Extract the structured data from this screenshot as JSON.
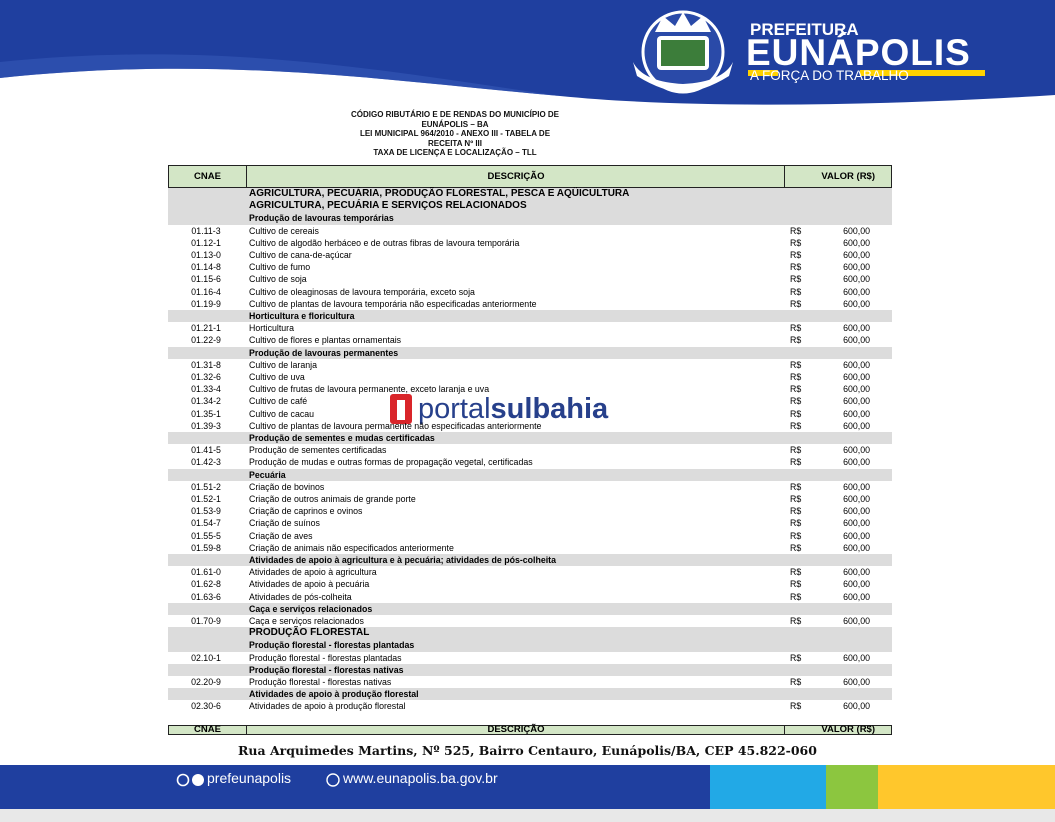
{
  "header": {
    "brand_top": "PREFEITURA",
    "brand_name": "EUNÁPOLIS",
    "brand_slogan": "A FORÇA DO TRABALHO"
  },
  "document": {
    "title_lines": [
      "CÓDIGO RIBUTÁRIO E DE RENDAS DO MUNICÍPIO DE",
      "EUNÁPOLIS – BA",
      "LEI MUNICIPAL 964/2010 - ANEXO III - TABELA DE",
      "RECEITA Nº III",
      "TAXA DE LICENÇA E LOCALIZAÇÃO – TLL"
    ]
  },
  "table": {
    "header": [
      "CNAE",
      "DESCRIÇÃO",
      "VALOR (R$)"
    ],
    "rows": [
      {
        "section": "AGRICULTURA, PECUÁRIA, PRODUÇÃO FLORESTAL, PESCA E AQÜICULTURA"
      },
      {
        "section": "AGRICULTURA, PECUÁRIA E SERVIÇOS RELACIONADOS"
      },
      {
        "section": "Produção de lavouras temporárias"
      },
      {
        "code": "01.11-3",
        "description": "Cultivo de cereais",
        "currency": "R$",
        "value": "600,00"
      },
      {
        "code": "01.12-1",
        "description": "Cultivo de algodão herbáceo e de outras fibras de lavoura temporária",
        "currency": "R$",
        "value": "600,00"
      },
      {
        "code": "01.13-0",
        "description": "Cultivo de cana-de-açúcar",
        "currency": "R$",
        "value": "600,00"
      },
      {
        "code": "01.14-8",
        "description": "Cultivo de fumo",
        "currency": "R$",
        "value": "600,00"
      },
      {
        "code": "01.15-6",
        "description": "Cultivo de soja",
        "currency": "R$",
        "value": "600,00"
      },
      {
        "code": "01.16-4",
        "description": "Cultivo de oleaginosas de lavoura temporária, exceto soja",
        "currency": "R$",
        "value": "600,00"
      },
      {
        "code": "01.19-9",
        "description": "Cultivo de plantas de lavoura temporária não especificadas anteriormente",
        "currency": "R$",
        "value": "600,00"
      },
      {
        "section": "Horticultura e floricultura"
      },
      {
        "code": "01.21-1",
        "description": "Horticultura",
        "currency": "R$",
        "value": "600,00"
      },
      {
        "code": "01.22-9",
        "description": "Cultivo de flores e plantas ornamentais",
        "currency": "R$",
        "value": "600,00"
      },
      {
        "section": "Produção de lavouras permanentes"
      },
      {
        "code": "01.31-8",
        "description": "Cultivo de laranja",
        "currency": "R$",
        "value": "600,00"
      },
      {
        "code": "01.32-6",
        "description": "Cultivo de uva",
        "currency": "R$",
        "value": "600,00"
      },
      {
        "code": "01.33-4",
        "description": "Cultivo de frutas de lavoura permanente, exceto laranja e uva",
        "currency": "R$",
        "value": "600,00"
      },
      {
        "code": "01.34-2",
        "description": "Cultivo de café",
        "currency": "R$",
        "value": "600,00"
      },
      {
        "code": "01.35-1",
        "description": "Cultivo de cacau",
        "currency": "R$",
        "value": "600,00"
      },
      {
        "code": "01.39-3",
        "description": "Cultivo de plantas de lavoura permanente não especificadas anteriormente",
        "currency": "R$",
        "value": "600,00"
      },
      {
        "section": "Produção de sementes e mudas certificadas"
      },
      {
        "code": "01.41-5",
        "description": "Produção de sementes certificadas",
        "currency": "R$",
        "value": "600,00"
      },
      {
        "code": "01.42-3",
        "description": "Produção de mudas e outras formas de propagação vegetal, certificadas",
        "currency": "R$",
        "value": "600,00"
      },
      {
        "section": "Pecuária"
      },
      {
        "code": "01.51-2",
        "description": "Criação de bovinos",
        "currency": "R$",
        "value": "600,00"
      },
      {
        "code": "01.52-1",
        "description": "Criação de outros animais de grande porte",
        "currency": "R$",
        "value": "600,00"
      },
      {
        "code": "01.53-9",
        "description": "Criação de caprinos e ovinos",
        "currency": "R$",
        "value": "600,00"
      },
      {
        "code": "01.54-7",
        "description": "Criação de suínos",
        "currency": "R$",
        "value": "600,00"
      },
      {
        "code": "01.55-5",
        "description": "Criação de aves",
        "currency": "R$",
        "value": "600,00"
      },
      {
        "code": "01.59-8",
        "description": "Criação de animais não especificados anteriormente",
        "currency": "R$",
        "value": "600,00"
      },
      {
        "section": "Atividades de apoio à agricultura e à pecuária; atividades de pós-colheita"
      },
      {
        "code": "01.61-0",
        "description": "Atividades de apoio à agricultura",
        "currency": "R$",
        "value": "600,00"
      },
      {
        "code": "01.62-8",
        "description": "Atividades de apoio à pecuária",
        "currency": "R$",
        "value": "600,00"
      },
      {
        "code": "01.63-6",
        "description": "Atividades de pós-colheita",
        "currency": "R$",
        "value": "600,00"
      },
      {
        "section": "Caça e serviços relacionados"
      },
      {
        "code": "01.70-9",
        "description": "Caça e serviços relacionados",
        "currency": "R$",
        "value": "600,00"
      },
      {
        "section": "PRODUÇÃO FLORESTAL"
      },
      {
        "section": "Produção florestal - florestas plantadas"
      },
      {
        "code": "02.10-1",
        "description": "Produção florestal - florestas plantadas",
        "currency": "R$",
        "value": "600,00"
      },
      {
        "section": "Produção florestal - florestas nativas"
      },
      {
        "code": "02.20-9",
        "description": "Produção florestal - florestas nativas",
        "currency": "R$",
        "value": "600,00"
      },
      {
        "section": "Atividades de apoio à produção florestal"
      },
      {
        "code": "02.30-6",
        "description": "Atividades de apoio à produção florestal",
        "currency": "R$",
        "value": "600,00"
      }
    ],
    "footer_header": [
      "CNAE",
      "DESCRIÇÃO",
      "VALOR (R$)"
    ]
  },
  "watermark": {
    "part1": "portal",
    "part2": "sulbahia"
  },
  "footer": {
    "address": "Rua Arquimedes Martins, Nº 525, Bairro Centauro, Eunápolis/BA, CEP 45.822-060",
    "social": "prefeunapolis",
    "website": "www.eunapolis.ba.gov.br"
  }
}
